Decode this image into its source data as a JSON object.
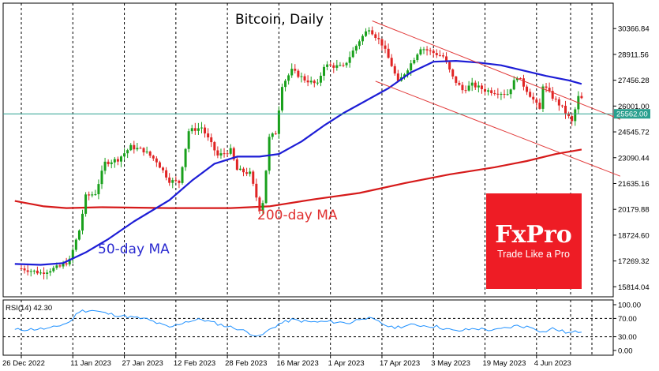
{
  "chart_data": {
    "type": "candlestick",
    "title": "Bitcoin, Daily",
    "interval": "Daily",
    "x_tick_labels": [
      "26 Dec 2022",
      "11 Jan 2023",
      "27 Jan 2023",
      "12 Feb 2023",
      "28 Feb 2023",
      "16 Mar 2023",
      "1 Apr 2023",
      "17 Apr 2023",
      "3 May 2023",
      "19 May 2023",
      "4 Jun 2023"
    ],
    "y_tick_labels": [
      "30366.84",
      "28911.56",
      "27456.28",
      "26001.00",
      "24545.72",
      "23090.44",
      "21635.16",
      "20179.88",
      "18724.60",
      "17269.32",
      "15814.04"
    ],
    "ylim": [
      15250,
      31800
    ],
    "current_price": "25562.00",
    "line_colors": {
      "candle_up": "#19a01c",
      "candle_down": "#e02424",
      "ma50": "#1d1dd6",
      "ma200": "#d61a1a",
      "channel": "#e23b3b",
      "price_line": "#2aa08f",
      "rsi": "#1e90ff"
    },
    "ohlc_anchors": [
      {
        "date": "2022-12-26",
        "close": 16850
      },
      {
        "date": "2023-01-01",
        "close": 16600
      },
      {
        "date": "2023-01-07",
        "close": 16950
      },
      {
        "date": "2023-01-10",
        "close": 17300
      },
      {
        "date": "2023-01-13",
        "close": 19000
      },
      {
        "date": "2023-01-15",
        "close": 20900
      },
      {
        "date": "2023-01-18",
        "close": 21100
      },
      {
        "date": "2023-01-21",
        "close": 22800
      },
      {
        "date": "2023-01-25",
        "close": 23000
      },
      {
        "date": "2023-01-29",
        "close": 23700
      },
      {
        "date": "2023-02-02",
        "close": 23500
      },
      {
        "date": "2023-02-06",
        "close": 22900
      },
      {
        "date": "2023-02-10",
        "close": 21800
      },
      {
        "date": "2023-02-13",
        "close": 21700
      },
      {
        "date": "2023-02-16",
        "close": 24600
      },
      {
        "date": "2023-02-20",
        "close": 24800
      },
      {
        "date": "2023-02-25",
        "close": 23200
      },
      {
        "date": "2023-03-01",
        "close": 23500
      },
      {
        "date": "2023-03-03",
        "close": 22400
      },
      {
        "date": "2023-03-07",
        "close": 22200
      },
      {
        "date": "2023-03-10",
        "close": 20200
      },
      {
        "date": "2023-03-11",
        "close": 20600
      },
      {
        "date": "2023-03-13",
        "close": 24200
      },
      {
        "date": "2023-03-15",
        "close": 24500
      },
      {
        "date": "2023-03-17",
        "close": 27200
      },
      {
        "date": "2023-03-20",
        "close": 28000
      },
      {
        "date": "2023-03-24",
        "close": 27500
      },
      {
        "date": "2023-03-28",
        "close": 27200
      },
      {
        "date": "2023-03-30",
        "close": 28300
      },
      {
        "date": "2023-04-05",
        "close": 28200
      },
      {
        "date": "2023-04-10",
        "close": 29700
      },
      {
        "date": "2023-04-13",
        "close": 30400
      },
      {
        "date": "2023-04-17",
        "close": 29500
      },
      {
        "date": "2023-04-20",
        "close": 28300
      },
      {
        "date": "2023-04-22",
        "close": 27300
      },
      {
        "date": "2023-04-26",
        "close": 28400
      },
      {
        "date": "2023-04-29",
        "close": 29300
      },
      {
        "date": "2023-05-03",
        "close": 29000
      },
      {
        "date": "2023-05-06",
        "close": 28800
      },
      {
        "date": "2023-05-09",
        "close": 27600
      },
      {
        "date": "2023-05-12",
        "close": 26900
      },
      {
        "date": "2023-05-15",
        "close": 27200
      },
      {
        "date": "2023-05-19",
        "close": 26900
      },
      {
        "date": "2023-05-22",
        "close": 26800
      },
      {
        "date": "2023-05-26",
        "close": 26700
      },
      {
        "date": "2023-05-29",
        "close": 27700
      },
      {
        "date": "2023-06-01",
        "close": 26900
      },
      {
        "date": "2023-06-05",
        "close": 25800
      },
      {
        "date": "2023-06-06",
        "close": 27200
      },
      {
        "date": "2023-06-09",
        "close": 26500
      },
      {
        "date": "2023-06-12",
        "close": 25900
      },
      {
        "date": "2023-06-15",
        "close": 25100
      },
      {
        "date": "2023-06-17",
        "close": 26500
      },
      {
        "date": "2023-06-18",
        "close": 26400
      }
    ],
    "ma50_anchors": [
      {
        "date": "2022-12-24",
        "value": 17100
      },
      {
        "date": "2023-01-01",
        "value": 17050
      },
      {
        "date": "2023-01-08",
        "value": 17150
      },
      {
        "date": "2023-01-15",
        "value": 17750
      },
      {
        "date": "2023-01-22",
        "value": 18500
      },
      {
        "date": "2023-01-30",
        "value": 19500
      },
      {
        "date": "2023-02-10",
        "value": 20700
      },
      {
        "date": "2023-02-17",
        "value": 21800
      },
      {
        "date": "2023-02-24",
        "value": 22750
      },
      {
        "date": "2023-03-03",
        "value": 23150
      },
      {
        "date": "2023-03-10",
        "value": 23150
      },
      {
        "date": "2023-03-16",
        "value": 23300
      },
      {
        "date": "2023-03-23",
        "value": 24000
      },
      {
        "date": "2023-03-30",
        "value": 24900
      },
      {
        "date": "2023-04-05",
        "value": 25600
      },
      {
        "date": "2023-04-12",
        "value": 26300
      },
      {
        "date": "2023-04-19",
        "value": 27000
      },
      {
        "date": "2023-04-26",
        "value": 27900
      },
      {
        "date": "2023-05-03",
        "value": 28500
      },
      {
        "date": "2023-05-10",
        "value": 28550
      },
      {
        "date": "2023-05-17",
        "value": 28450
      },
      {
        "date": "2023-05-24",
        "value": 28300
      },
      {
        "date": "2023-05-31",
        "value": 28000
      },
      {
        "date": "2023-06-07",
        "value": 27700
      },
      {
        "date": "2023-06-14",
        "value": 27450
      },
      {
        "date": "2023-06-18",
        "value": 27250
      }
    ],
    "ma200_anchors": [
      {
        "date": "2022-12-24",
        "value": 20650
      },
      {
        "date": "2023-01-02",
        "value": 20350
      },
      {
        "date": "2023-01-09",
        "value": 20250
      },
      {
        "date": "2023-01-20",
        "value": 20300
      },
      {
        "date": "2023-02-10",
        "value": 20250
      },
      {
        "date": "2023-03-01",
        "value": 20250
      },
      {
        "date": "2023-03-13",
        "value": 20350
      },
      {
        "date": "2023-03-27",
        "value": 20750
      },
      {
        "date": "2023-04-10",
        "value": 21100
      },
      {
        "date": "2023-04-24",
        "value": 21650
      },
      {
        "date": "2023-05-08",
        "value": 22150
      },
      {
        "date": "2023-05-22",
        "value": 22550
      },
      {
        "date": "2023-06-01",
        "value": 22900
      },
      {
        "date": "2023-06-10",
        "value": 23300
      },
      {
        "date": "2023-06-18",
        "value": 23550
      }
    ],
    "channel_lines": [
      {
        "from": {
          "date": "2023-04-14",
          "value": 30800
        },
        "to": {
          "date": "2023-06-30",
          "value": 25250
        }
      },
      {
        "from": {
          "date": "2023-04-15",
          "value": 27400
        },
        "to": {
          "date": "2023-06-30",
          "value": 22050
        }
      }
    ],
    "labels": {
      "ma50": "50-day MA",
      "ma200": "200-day MA"
    },
    "watermark": {
      "brand": "FxPro",
      "tagline": "Trade Like a Pro",
      "color": "#ee1c25"
    },
    "rsi": {
      "label": "RSI(14) 42.30",
      "period": 14,
      "last_value": 42.3,
      "ylim": [
        0,
        100
      ],
      "y_tick_labels": [
        "100.00",
        "70.00",
        "30.00",
        "0.00"
      ],
      "levels": [
        70,
        30
      ],
      "anchors": [
        {
          "date": "2022-12-24",
          "value": 45
        },
        {
          "date": "2023-01-04",
          "value": 48
        },
        {
          "date": "2023-01-10",
          "value": 62
        },
        {
          "date": "2023-01-13",
          "value": 86
        },
        {
          "date": "2023-01-17",
          "value": 88
        },
        {
          "date": "2023-01-22",
          "value": 80
        },
        {
          "date": "2023-01-28",
          "value": 74
        },
        {
          "date": "2023-02-03",
          "value": 68
        },
        {
          "date": "2023-02-10",
          "value": 50
        },
        {
          "date": "2023-02-15",
          "value": 63
        },
        {
          "date": "2023-02-20",
          "value": 68
        },
        {
          "date": "2023-02-26",
          "value": 56
        },
        {
          "date": "2023-03-03",
          "value": 48
        },
        {
          "date": "2023-03-07",
          "value": 38
        },
        {
          "date": "2023-03-10",
          "value": 30
        },
        {
          "date": "2023-03-13",
          "value": 45
        },
        {
          "date": "2023-03-16",
          "value": 58
        },
        {
          "date": "2023-03-20",
          "value": 67
        },
        {
          "date": "2023-03-26",
          "value": 62
        },
        {
          "date": "2023-04-01",
          "value": 63
        },
        {
          "date": "2023-04-07",
          "value": 60
        },
        {
          "date": "2023-04-11",
          "value": 72
        },
        {
          "date": "2023-04-14",
          "value": 68
        },
        {
          "date": "2023-04-20",
          "value": 50
        },
        {
          "date": "2023-04-27",
          "value": 56
        },
        {
          "date": "2023-05-04",
          "value": 52
        },
        {
          "date": "2023-05-10",
          "value": 42
        },
        {
          "date": "2023-05-16",
          "value": 48
        },
        {
          "date": "2023-05-22",
          "value": 44
        },
        {
          "date": "2023-05-29",
          "value": 54
        },
        {
          "date": "2023-06-03",
          "value": 50
        },
        {
          "date": "2023-06-06",
          "value": 40
        },
        {
          "date": "2023-06-09",
          "value": 48
        },
        {
          "date": "2023-06-14",
          "value": 38
        },
        {
          "date": "2023-06-18",
          "value": 42.3
        }
      ]
    }
  }
}
